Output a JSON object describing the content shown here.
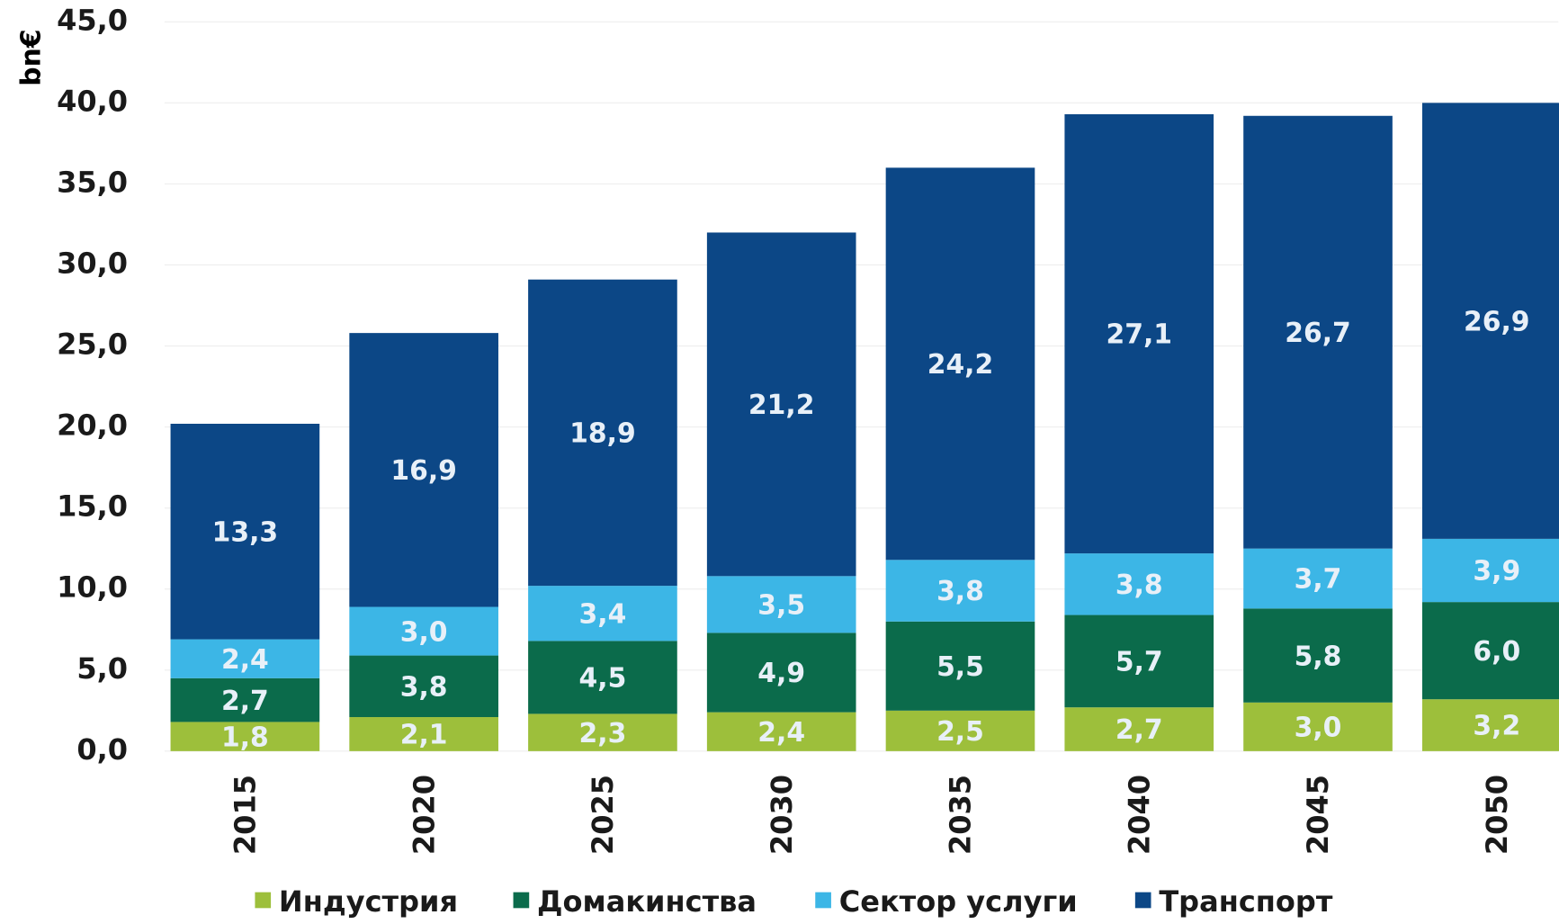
{
  "chart_data": {
    "type": "stacked_bar",
    "y_label": "bn€",
    "categories": [
      "2015",
      "2020",
      "2025",
      "2030",
      "2035",
      "2040",
      "2045",
      "2050"
    ],
    "series": [
      {
        "name": "Индустрия",
        "color": "#9dbf3b",
        "values": [
          1.8,
          2.1,
          2.3,
          2.4,
          2.5,
          2.7,
          3.0,
          3.2
        ],
        "value_labels": [
          "1,8",
          "2,1",
          "2,3",
          "2,4",
          "2,5",
          "2,7",
          "3,0",
          "3,2"
        ]
      },
      {
        "name": "Домакинства",
        "color": "#0b6b4b",
        "values": [
          2.7,
          3.8,
          4.5,
          4.9,
          5.5,
          5.7,
          5.8,
          6.0
        ],
        "value_labels": [
          "2,7",
          "3,8",
          "4,5",
          "4,9",
          "5,5",
          "5,7",
          "5,8",
          "6,0"
        ]
      },
      {
        "name": "Сектор услуги",
        "color": "#3cb6e6",
        "values": [
          2.4,
          3.0,
          3.4,
          3.5,
          3.8,
          3.8,
          3.7,
          3.9
        ],
        "value_labels": [
          "2,4",
          "3,0",
          "3,4",
          "3,5",
          "3,8",
          "3,8",
          "3,7",
          "3,9"
        ]
      },
      {
        "name": "Транспорт",
        "color": "#0c4786",
        "values": [
          13.3,
          16.9,
          18.9,
          21.2,
          24.2,
          27.1,
          26.7,
          26.9
        ],
        "value_labels": [
          "13,3",
          "16,9",
          "18,9",
          "21,2",
          "24,2",
          "27,1",
          "26,7",
          "26,9"
        ]
      }
    ],
    "ylim": [
      0,
      45
    ],
    "yticks": [
      {
        "value": 0,
        "label": "0,0"
      },
      {
        "value": 5,
        "label": "5,0"
      },
      {
        "value": 10,
        "label": "10,0"
      },
      {
        "value": 15,
        "label": "15,0"
      },
      {
        "value": 20,
        "label": "20,0"
      },
      {
        "value": 25,
        "label": "25,0"
      },
      {
        "value": 30,
        "label": "30,0"
      },
      {
        "value": 35,
        "label": "35,0"
      },
      {
        "value": 40,
        "label": "40,0"
      },
      {
        "value": 45,
        "label": "45,0"
      }
    ],
    "grid": true,
    "legend": "bottom"
  }
}
